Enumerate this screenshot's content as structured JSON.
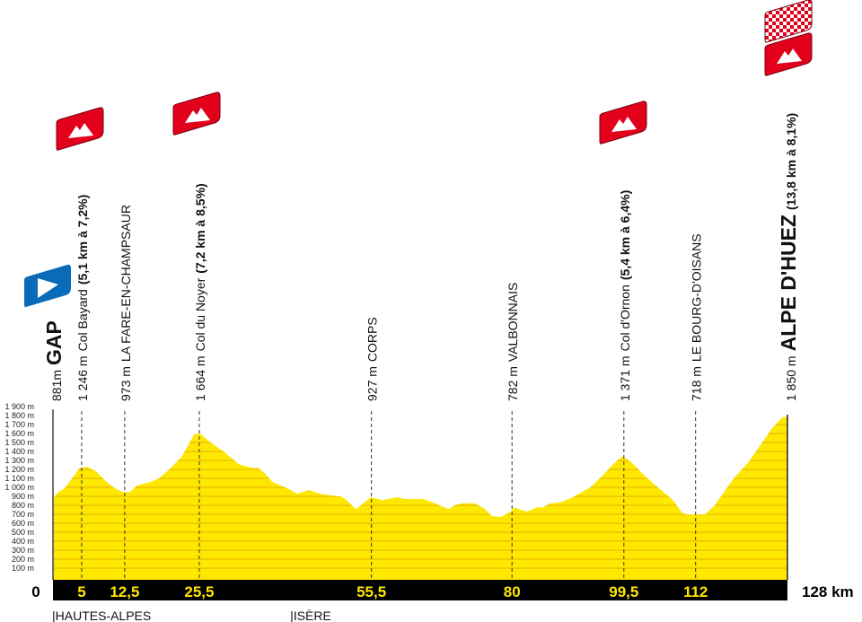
{
  "chart_data": {
    "type": "area",
    "xlabel": "",
    "ylabel": "",
    "x_unit": "km",
    "xlim": [
      0,
      128
    ],
    "ylim": [
      0,
      1900
    ],
    "grid": false,
    "y_ticks": [
      "100 m",
      "200 m",
      "300 m",
      "400 m",
      "500 m",
      "600 m",
      "700 m",
      "800 m",
      "900 m",
      "1 000 m",
      "1 100 m",
      "1 200 m",
      "1 300 m",
      "1 400 m",
      "1 500 m",
      "1 600 m",
      "1 700 m",
      "1 800 m",
      "1 900 m"
    ],
    "x_ticks": [
      {
        "km": 0,
        "label": "0"
      },
      {
        "km": 5,
        "label": "5"
      },
      {
        "km": 12.5,
        "label": "12,5"
      },
      {
        "km": 25.5,
        "label": "25,5"
      },
      {
        "km": 55.5,
        "label": "55,5"
      },
      {
        "km": 80,
        "label": "80"
      },
      {
        "km": 99.5,
        "label": "99,5"
      },
      {
        "km": 112,
        "label": "112"
      },
      {
        "km": 128,
        "label": "128 km"
      }
    ],
    "profile": [
      [
        0,
        880
      ],
      [
        0.9,
        947
      ],
      [
        2.0,
        990
      ],
      [
        3.3,
        1097
      ],
      [
        4.6,
        1213
      ],
      [
        5.9,
        1230
      ],
      [
        7.5,
        1180
      ],
      [
        9.0,
        1080
      ],
      [
        10.6,
        997
      ],
      [
        12.1,
        947
      ],
      [
        13.4,
        947
      ],
      [
        14.7,
        1023
      ],
      [
        16.8,
        1057
      ],
      [
        18.4,
        1097
      ],
      [
        20.5,
        1213
      ],
      [
        22.5,
        1347
      ],
      [
        24.6,
        1590
      ],
      [
        25.7,
        1597
      ],
      [
        27.2,
        1513
      ],
      [
        29.8,
        1397
      ],
      [
        32.4,
        1257
      ],
      [
        34.0,
        1230
      ],
      [
        35.3,
        1213
      ],
      [
        35.6,
        1225
      ],
      [
        36.9,
        1157
      ],
      [
        38.2,
        1063
      ],
      [
        40.8,
        990
      ],
      [
        42.6,
        930
      ],
      [
        44.6,
        970
      ],
      [
        46.9,
        923
      ],
      [
        50.2,
        897
      ],
      [
        51.1,
        863
      ],
      [
        52.8,
        757
      ],
      [
        55.4,
        890
      ],
      [
        57.4,
        857
      ],
      [
        60.0,
        890
      ],
      [
        61.3,
        870
      ],
      [
        64.6,
        870
      ],
      [
        66.6,
        823
      ],
      [
        68.9,
        757
      ],
      [
        69.9,
        797
      ],
      [
        71.2,
        823
      ],
      [
        73.5,
        823
      ],
      [
        75.2,
        763
      ],
      [
        76.5,
        680
      ],
      [
        78.1,
        670
      ],
      [
        79.8,
        730
      ],
      [
        80.4,
        777
      ],
      [
        81.7,
        747
      ],
      [
        82.7,
        730
      ],
      [
        84.4,
        780
      ],
      [
        85.4,
        777
      ],
      [
        86.7,
        823
      ],
      [
        88.3,
        830
      ],
      [
        90.3,
        880
      ],
      [
        93.6,
        997
      ],
      [
        95.5,
        1113
      ],
      [
        97.5,
        1247
      ],
      [
        99.2,
        1347
      ],
      [
        100.8,
        1280
      ],
      [
        103.4,
        1113
      ],
      [
        106.1,
        963
      ],
      [
        108.0,
        863
      ],
      [
        109.7,
        713
      ],
      [
        110.7,
        697
      ],
      [
        113.6,
        697
      ],
      [
        115.3,
        797
      ],
      [
        118.6,
        1097
      ],
      [
        121.2,
        1280
      ],
      [
        123.2,
        1463
      ],
      [
        125.2,
        1647
      ],
      [
        127.1,
        1780
      ],
      [
        128,
        1790
      ]
    ],
    "markers": [
      {
        "km": 0,
        "altitude": "881m",
        "name": "GAP",
        "climb": "",
        "kind": "start",
        "icon": "start-flag"
      },
      {
        "km": 5,
        "altitude": "1 246 m",
        "name": "Col Bayard",
        "climb": "(5,1 km à 7,2%)",
        "kind": "climb",
        "icon": "mountain"
      },
      {
        "km": 12.5,
        "altitude": "973 m",
        "name": "LA FARE-EN-CHAMPSAUR",
        "climb": "",
        "kind": "town",
        "icon": ""
      },
      {
        "km": 25.5,
        "altitude": "1 664 m",
        "name": "Col du Noyer",
        "climb": "(7,2 km à 8,5%)",
        "kind": "climb",
        "icon": "mountain"
      },
      {
        "km": 55.5,
        "altitude": "927 m",
        "name": "CORPS",
        "climb": "",
        "kind": "town",
        "icon": ""
      },
      {
        "km": 80,
        "altitude": "782 m",
        "name": "VALBONNAIS",
        "climb": "",
        "kind": "town",
        "icon": ""
      },
      {
        "km": 99.5,
        "altitude": "1 371 m",
        "name": "Col d'Ornon",
        "climb": "(5,4 km à 6,4%)",
        "kind": "climb",
        "icon": "mountain"
      },
      {
        "km": 112,
        "altitude": "718 m",
        "name": "LE BOURG-D'OISANS",
        "climb": "",
        "kind": "town",
        "icon": ""
      },
      {
        "km": 128,
        "altitude": "1 850 m",
        "name": "ALPE D'HUEZ",
        "climb": "(13,8 km à 8,1%)",
        "kind": "finish",
        "icon": "mountain"
      }
    ],
    "regions": [
      {
        "km": 0,
        "label": "HAUTES-ALPES"
      },
      {
        "km": 41.5,
        "label": "ISÈRE"
      }
    ],
    "colors": {
      "profile": "#ffe800",
      "stripe": "#f0cc00",
      "axis_bar": "#000000",
      "tick_label": "#ffe600",
      "climb_icon": "#e2001a",
      "start_icon": "#0a6bb8"
    }
  }
}
